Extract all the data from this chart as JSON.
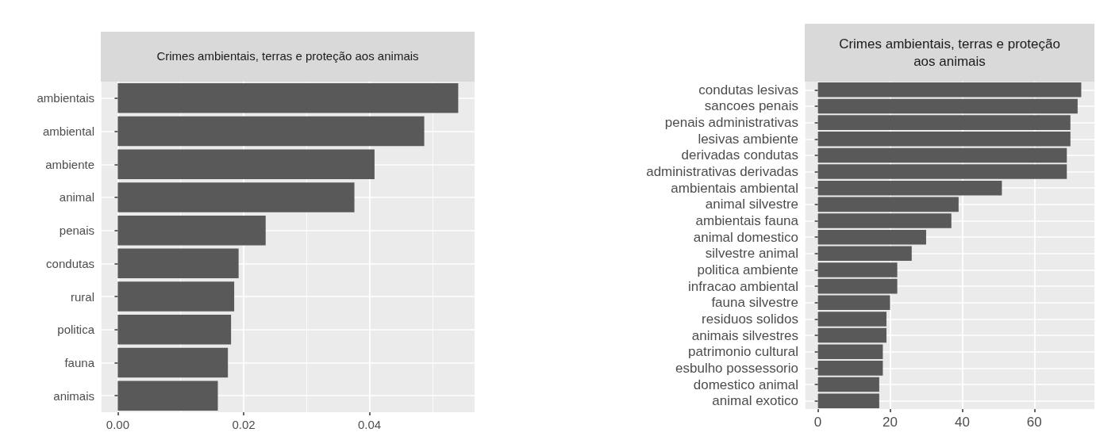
{
  "chart_data": [
    {
      "type": "bar",
      "orientation": "horizontal",
      "title": "Crimes ambientais, terras e proteção aos animais",
      "categories": [
        "ambientais",
        "ambiental",
        "ambiente",
        "animal",
        "penais",
        "condutas",
        "rural",
        "politica",
        "fauna",
        "animais"
      ],
      "values": [
        0.0541,
        0.0487,
        0.0408,
        0.0376,
        0.0235,
        0.0192,
        0.0185,
        0.018,
        0.0175,
        0.0159
      ],
      "color": "#595959",
      "xlim": [
        -0.0027,
        0.0567
      ],
      "xticks": [
        {
          "value": 0,
          "label": "0.00"
        },
        0.02,
        0.04
      ],
      "grid": true
    },
    {
      "type": "bar",
      "orientation": "horizontal",
      "title": "Crimes ambientais, terras e proteção aos animais",
      "categories": [
        "condutas lesivas",
        "sancoes penais",
        "penais administrativas",
        "lesivas ambiente",
        "derivadas condutas",
        "administrativas derivadas",
        "ambientais ambiental",
        "animal silvestre",
        "ambientais fauna",
        "animal domestico",
        "silvestre animal",
        "politica ambiente",
        "infracao ambiental",
        "fauna silvestre",
        "residuos solidos",
        "animais silvestres",
        "patrimonio cultural",
        "esbulho possessorio",
        "domestico animal",
        "animal exotico"
      ],
      "values": [
        73,
        72,
        70,
        70,
        69,
        69,
        51,
        39,
        37,
        30,
        26,
        22,
        22,
        20,
        19,
        19,
        18,
        18,
        17,
        17
      ],
      "color": "#595959",
      "xlim": [
        -3.65,
        76.65
      ],
      "xticks": [
        0,
        20,
        40,
        60
      ],
      "grid": true
    }
  ]
}
